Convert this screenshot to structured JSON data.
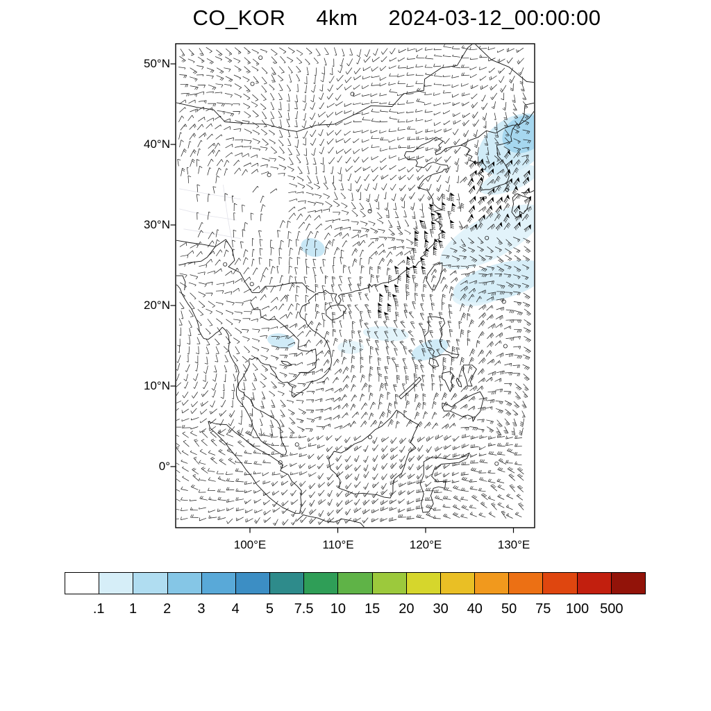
{
  "title": {
    "variable": "CO_KOR",
    "resolution": "4km",
    "datetime": "2024-03-12_00:00:00"
  },
  "map": {
    "lat_labels": [
      "50°N",
      "40°N",
      "30°N",
      "20°N",
      "10°N",
      "0°"
    ],
    "lon_labels": [
      "100°E",
      "110°E",
      "120°E",
      "130°E"
    ]
  },
  "colorbar": {
    "labels": [
      ".1",
      "1",
      "2",
      "3",
      "4",
      "5",
      "7.5",
      "10",
      "15",
      "20",
      "30",
      "40",
      "50",
      "75",
      "100",
      "500"
    ],
    "colors": [
      "#ffffff",
      "#d6eef8",
      "#b0ddf1",
      "#85c6e6",
      "#59a9d8",
      "#3c8ec4",
      "#2e8b8b",
      "#2f9e57",
      "#5fb347",
      "#9cc93c",
      "#d6d62c",
      "#e9bf25",
      "#f1991d",
      "#ec7014",
      "#df460f",
      "#c21f0e",
      "#921309"
    ],
    "shading_fill_colors": {
      "light": "#d6eef8",
      "medium": "#b0ddf1",
      "strong": "#85c6e6"
    },
    "line_color": "#000000"
  }
}
